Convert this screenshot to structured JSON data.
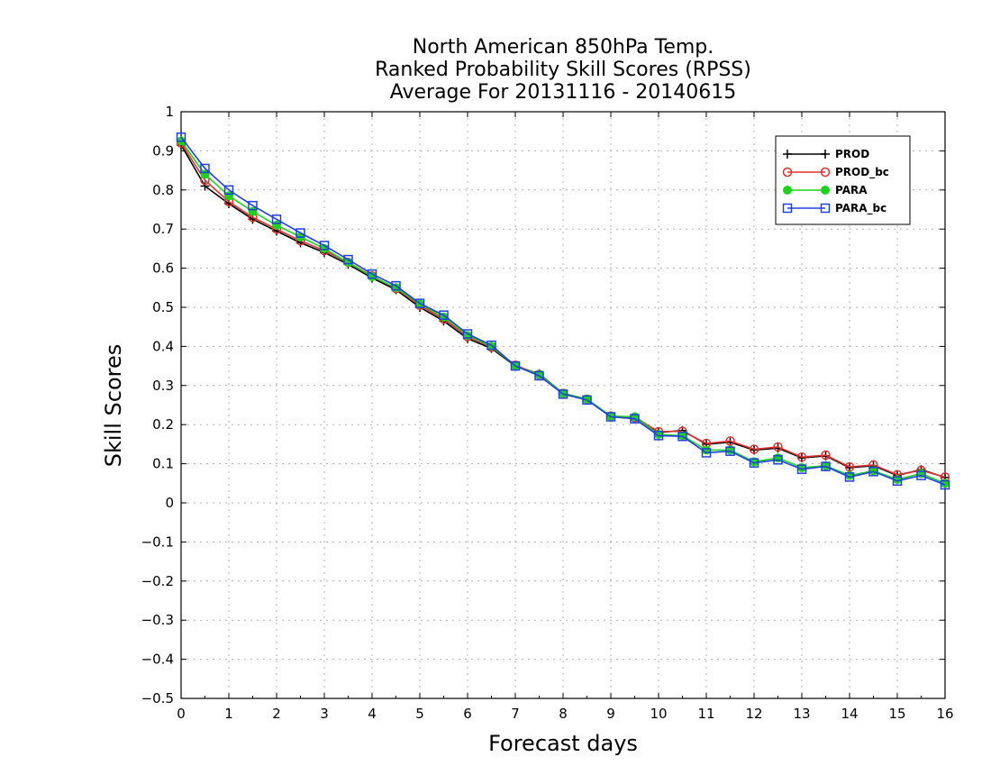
{
  "chart_data": {
    "type": "line",
    "title_lines": [
      "North American 850hPa Temp.",
      "Ranked Probability Skill Scores (RPSS)",
      "Average For 20131116 - 20140615"
    ],
    "xlabel": "Forecast days",
    "ylabel": "Skill Scores",
    "xlim": [
      0,
      16
    ],
    "ylim": [
      -0.5,
      1
    ],
    "x_ticks": [
      "0",
      "1",
      "2",
      "3",
      "4",
      "5",
      "6",
      "7",
      "8",
      "9",
      "10",
      "11",
      "12",
      "13",
      "14",
      "15",
      "16"
    ],
    "y_ticks": [
      "−0.5",
      "−0.4",
      "−0.3",
      "−0.2",
      "−0.1",
      "0",
      "0.1",
      "0.2",
      "0.3",
      "0.4",
      "0.5",
      "0.6",
      "0.7",
      "0.8",
      "0.9",
      "1"
    ],
    "grid": true,
    "legend_position": "top-right",
    "x": [
      0,
      0.5,
      1,
      1.5,
      2,
      2.5,
      3,
      3.5,
      4,
      4.5,
      5,
      5.5,
      6,
      6.5,
      7,
      7.5,
      8,
      8.5,
      9,
      9.5,
      10,
      10.5,
      11,
      11.5,
      12,
      12.5,
      13,
      13.5,
      14,
      14.5,
      15,
      15.5,
      16
    ],
    "series": [
      {
        "name": "PROD",
        "color": "#000000",
        "marker": "plus",
        "values": [
          0.915,
          0.81,
          0.765,
          0.725,
          0.695,
          0.665,
          0.64,
          0.61,
          0.575,
          0.545,
          0.5,
          0.465,
          0.42,
          0.395,
          0.35,
          0.33,
          0.28,
          0.265,
          0.22,
          0.22,
          0.18,
          0.185,
          0.15,
          0.155,
          0.135,
          0.14,
          0.115,
          0.12,
          0.09,
          0.095,
          0.07,
          0.085,
          0.065
        ]
      },
      {
        "name": "PROD_bc",
        "color": "#e03030",
        "marker": "open-circle",
        "values": [
          0.92,
          0.825,
          0.77,
          0.73,
          0.7,
          0.67,
          0.645,
          0.615,
          0.58,
          0.548,
          0.505,
          0.47,
          0.425,
          0.398,
          0.352,
          0.328,
          0.28,
          0.265,
          0.222,
          0.218,
          0.182,
          0.183,
          0.152,
          0.158,
          0.137,
          0.143,
          0.117,
          0.122,
          0.092,
          0.097,
          0.072,
          0.083,
          0.066
        ]
      },
      {
        "name": "PARA",
        "color": "#20d020",
        "marker": "filled-circle",
        "values": [
          0.925,
          0.84,
          0.785,
          0.745,
          0.71,
          0.68,
          0.65,
          0.615,
          0.578,
          0.55,
          0.508,
          0.475,
          0.428,
          0.4,
          0.35,
          0.328,
          0.28,
          0.265,
          0.222,
          0.22,
          0.175,
          0.172,
          0.135,
          0.135,
          0.105,
          0.115,
          0.09,
          0.095,
          0.07,
          0.082,
          0.06,
          0.075,
          0.05
        ]
      },
      {
        "name": "PARA_bc",
        "color": "#2040e0",
        "marker": "open-square",
        "values": [
          0.935,
          0.855,
          0.8,
          0.76,
          0.725,
          0.69,
          0.658,
          0.622,
          0.585,
          0.555,
          0.51,
          0.48,
          0.432,
          0.403,
          0.35,
          0.325,
          0.278,
          0.263,
          0.22,
          0.215,
          0.172,
          0.17,
          0.128,
          0.132,
          0.102,
          0.11,
          0.086,
          0.093,
          0.066,
          0.08,
          0.056,
          0.07,
          0.046
        ]
      }
    ]
  }
}
